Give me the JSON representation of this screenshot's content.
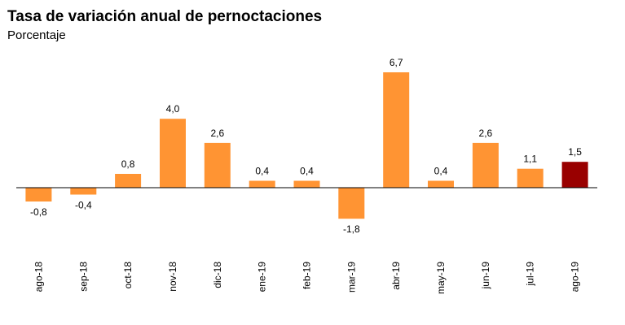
{
  "chart_data": {
    "type": "bar",
    "title": "Tasa de variación anual de pernoctaciones",
    "subtitle": "Porcentaje",
    "xlabel": "",
    "ylabel": "",
    "categories": [
      "ago-18",
      "sep-18",
      "oct-18",
      "nov-18",
      "dic-18",
      "ene-19",
      "feb-19",
      "mar-19",
      "abr-19",
      "may-19",
      "jun-19",
      "jul-19",
      "ago-19"
    ],
    "values": [
      -0.8,
      -0.4,
      0.8,
      4.0,
      2.6,
      0.4,
      0.4,
      -1.8,
      6.7,
      0.4,
      2.6,
      1.1,
      1.5
    ],
    "labels": [
      "-0,8",
      "-0,4",
      "0,8",
      "4,0",
      "2,6",
      "0,4",
      "0,4",
      "-1,8",
      "6,7",
      "0,4",
      "2,6",
      "1,1",
      "1,5"
    ],
    "ylim": [
      -2.5,
      7.5
    ],
    "grid": false,
    "legend": "none",
    "colors": {
      "bar": "#FF9433",
      "highlight": "#990000",
      "highlight_index": 12,
      "axis": "#000000"
    }
  }
}
